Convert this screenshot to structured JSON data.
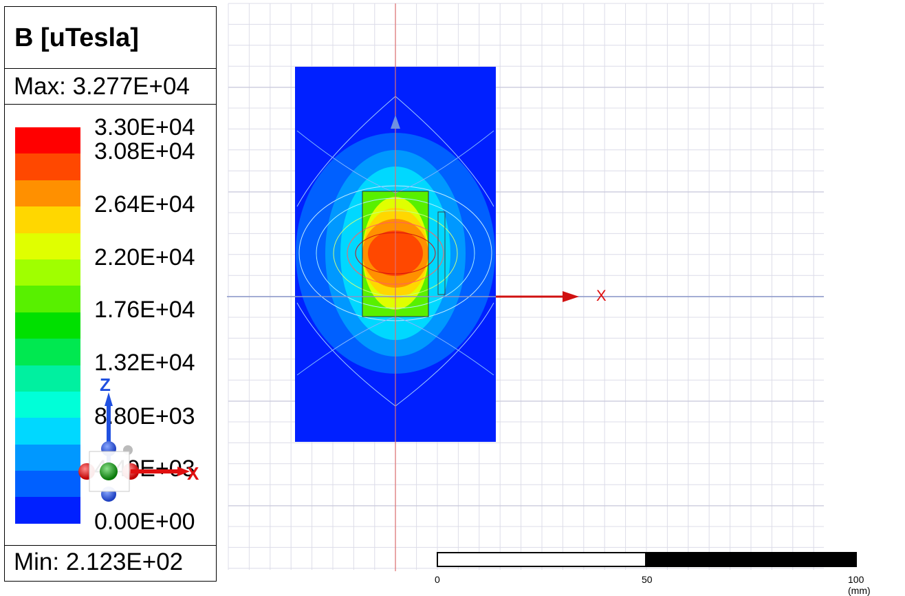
{
  "legend": {
    "title": "B [uTesla]",
    "max_label": "Max: 3.277E+04",
    "min_label": "Min: 2.123E+02",
    "ticks": [
      "3.30E+04",
      "3.08E+04",
      "2.64E+04",
      "2.20E+04",
      "1.76E+04",
      "1.32E+04",
      "8.80E+03",
      "4.40E+03",
      "0.00E+00"
    ],
    "colors": [
      "#ff0000",
      "#ff4800",
      "#ff9000",
      "#ffd700",
      "#e0ff00",
      "#a0ff00",
      "#58f000",
      "#00e000",
      "#00e850",
      "#00f0a0",
      "#00ffd8",
      "#00d8ff",
      "#0098ff",
      "#0060ff",
      "#0020ff"
    ]
  },
  "triad": {
    "z_label": "Z",
    "x_label": "X"
  },
  "axis": {
    "x_label": "X"
  },
  "scale": {
    "labels": [
      "0",
      "50",
      "100 (mm)"
    ]
  }
}
